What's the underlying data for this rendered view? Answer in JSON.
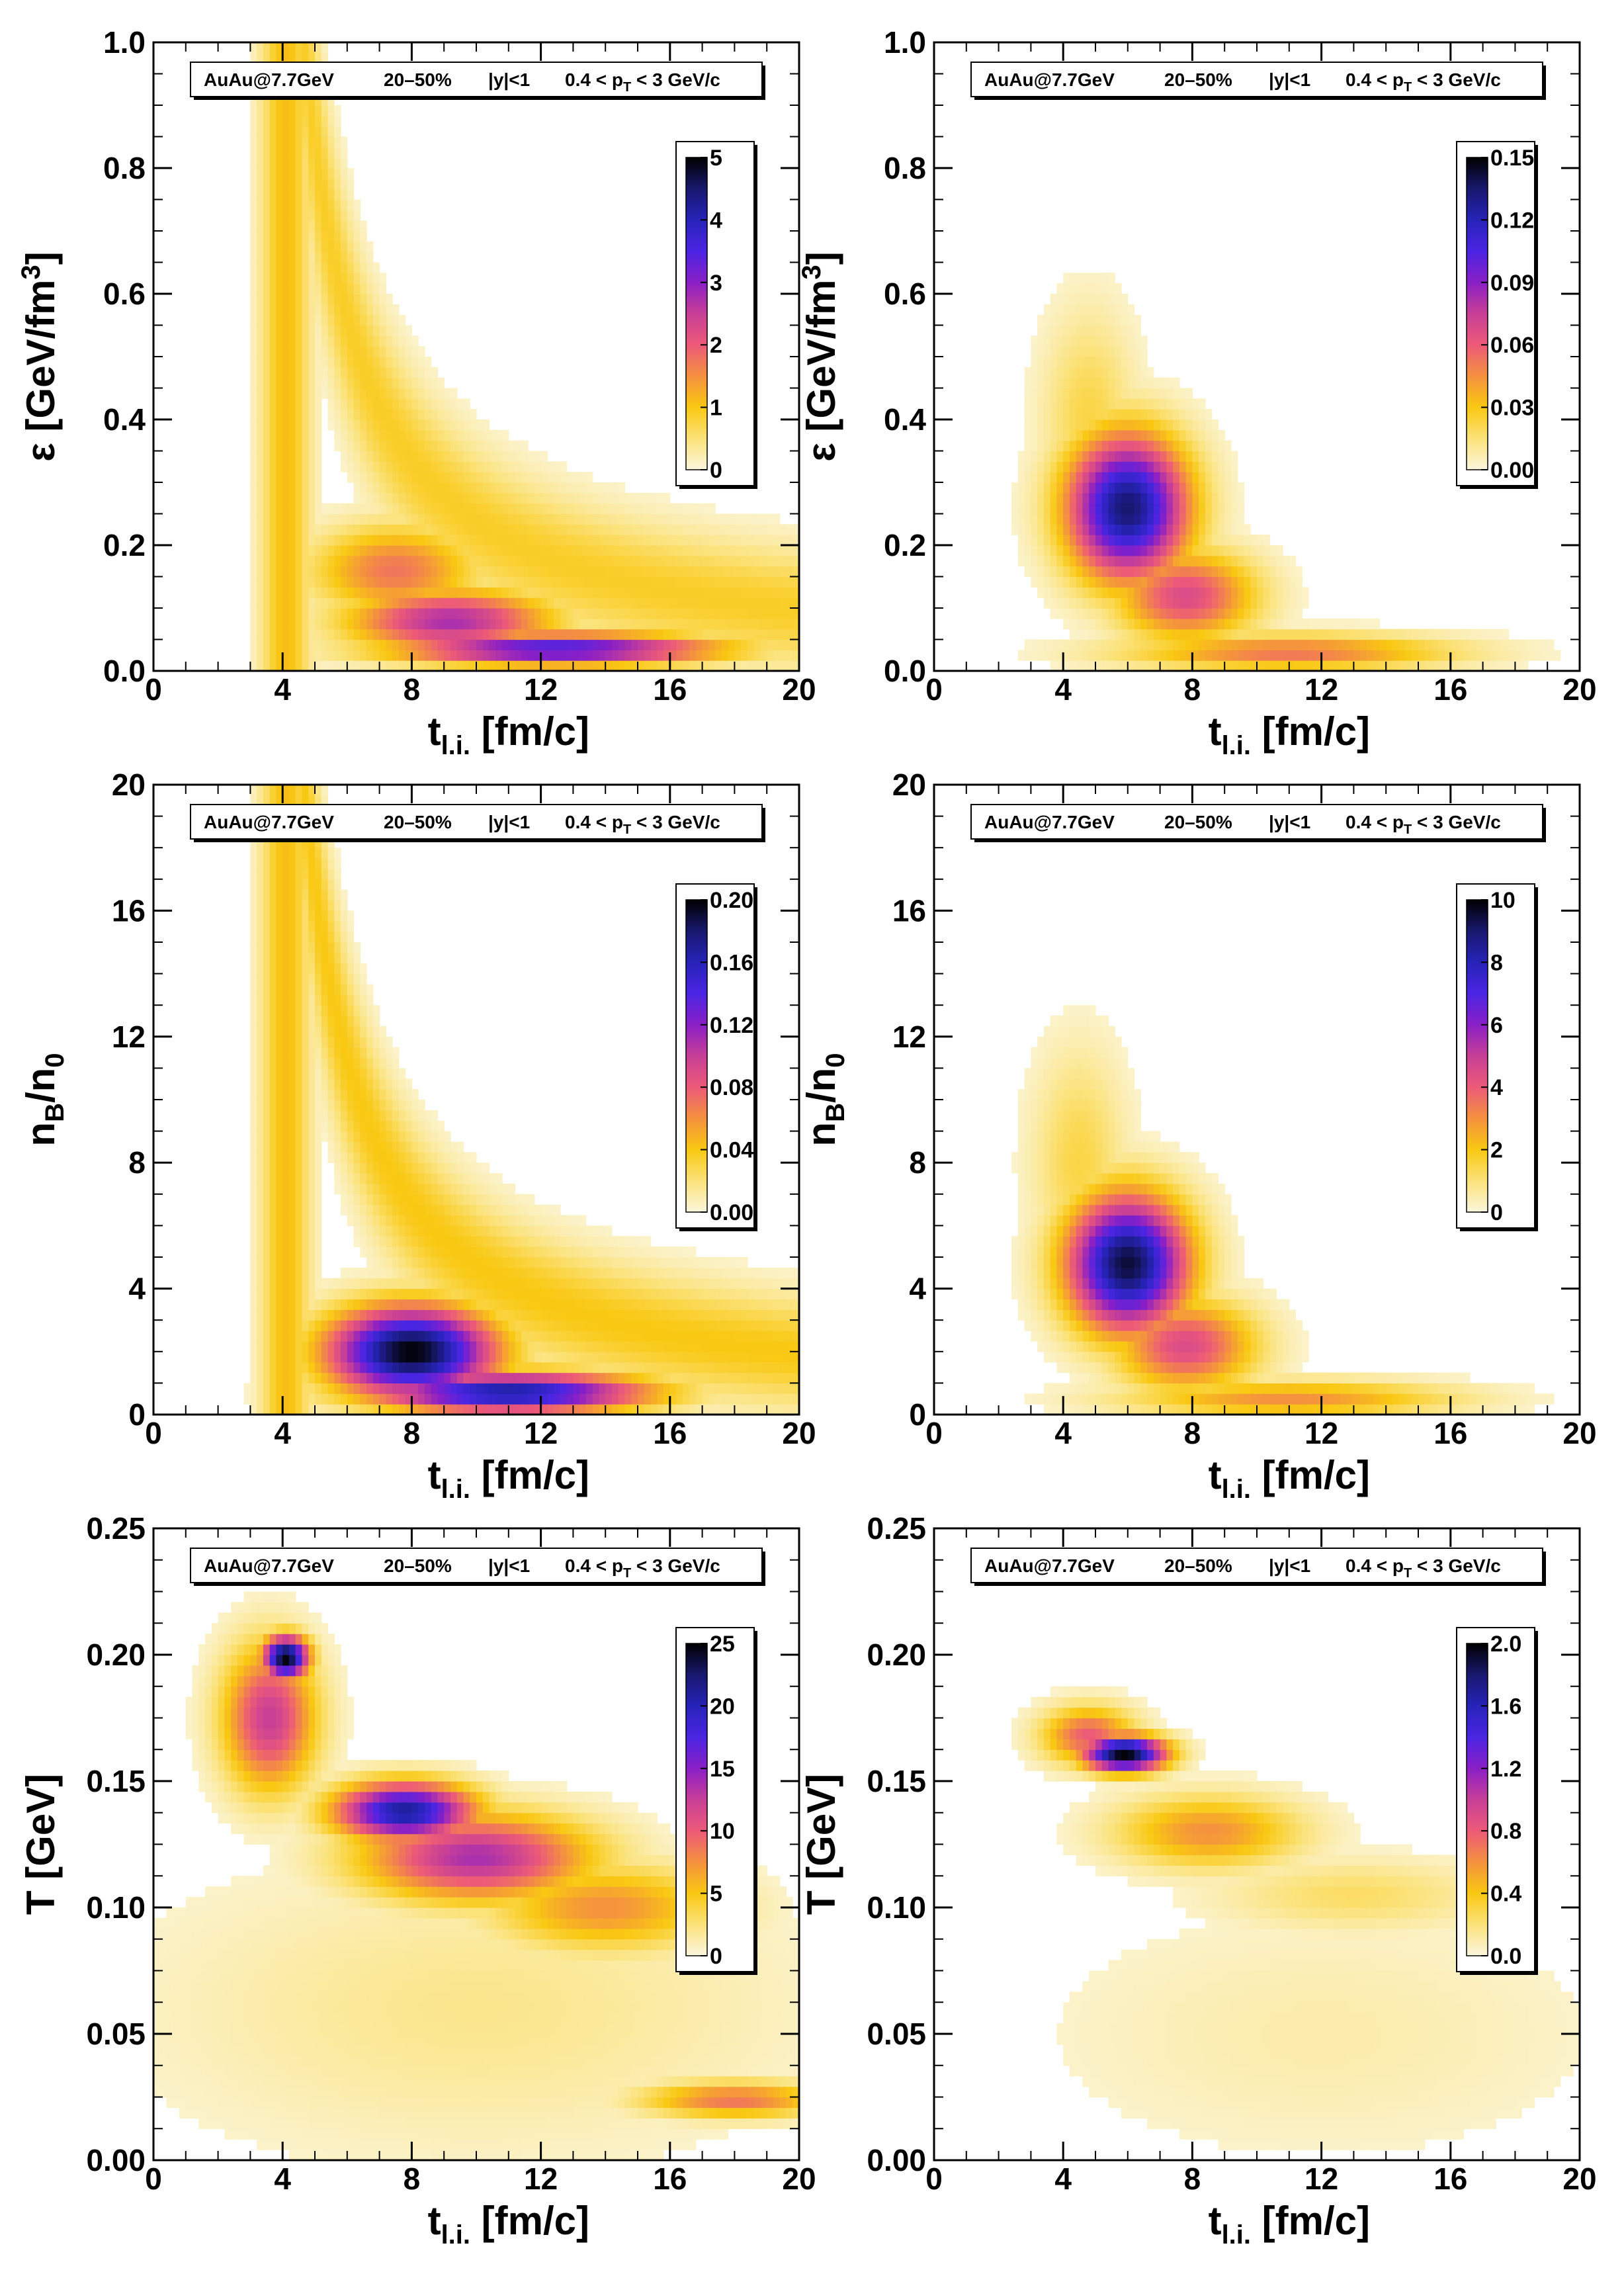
{
  "info_box": {
    "collision": "AuAu@7.7GeV",
    "centrality": "20–50%",
    "rapidity": "|y|<1",
    "pt_range": "0.4 < p",
    "pt_sub": "T",
    "pt_tail": " < 3 GeV/c"
  },
  "colorscale": [
    "#fbf6dd",
    "#fbe27a",
    "#f9c812",
    "#f4913f",
    "#ec5a78",
    "#c73f97",
    "#8a1fc6",
    "#4a25e2",
    "#2723b8",
    "#18186e",
    "#000000"
  ],
  "chart_data": [
    {
      "type": "heatmap",
      "panel": "epsilon-all",
      "xlabel": "t",
      "xlabel_sub": "l.i.",
      "xlabel_tail": " [fm/c]",
      "ylabel_text": "ε [GeV/fm",
      "ylabel_sup": "3",
      "ylabel_tail": "]",
      "xlim": [
        0,
        20
      ],
      "ylim": [
        0,
        1.0
      ],
      "xticks": [
        "0",
        "4",
        "8",
        "12",
        "16",
        "20"
      ],
      "yticks": [
        "0.0",
        "0.2",
        "0.4",
        "0.6",
        "0.8",
        "1.0"
      ],
      "colorbar_range": [
        0,
        5
      ],
      "colorbar_ticks": [
        "0",
        "1",
        "2",
        "3",
        "4",
        "5"
      ],
      "features": [
        {
          "kind": "band",
          "t": 4.1,
          "width": 1.6,
          "ylow": 0.0,
          "yhigh": 1.0,
          "level": 0.22
        },
        {
          "kind": "curve",
          "a": 2.2,
          "t0": 3.0,
          "p": 1.15,
          "c": 0.015,
          "width": 0.055,
          "level": 0.18
        },
        {
          "kind": "blob",
          "t": 7.5,
          "y": 0.16,
          "st": 1.8,
          "sy": 0.05,
          "level": 0.35
        },
        {
          "kind": "blob",
          "t": 9.2,
          "y": 0.08,
          "st": 2.2,
          "sy": 0.035,
          "level": 0.55
        },
        {
          "kind": "blob",
          "t": 12.5,
          "y": 0.035,
          "st": 3.5,
          "sy": 0.018,
          "level": 0.72
        }
      ]
    },
    {
      "type": "heatmap",
      "panel": "epsilon-selected",
      "xlabel": "t",
      "xlabel_sub": "l.i.",
      "xlabel_tail": " [fm/c]",
      "ylabel_text": "ε [GeV/fm",
      "ylabel_sup": "3",
      "ylabel_tail": "]",
      "xlim": [
        0,
        20
      ],
      "ylim": [
        0,
        1.0
      ],
      "xticks": [
        "0",
        "4",
        "8",
        "12",
        "16",
        "20"
      ],
      "yticks": [
        "0.0",
        "0.2",
        "0.4",
        "0.6",
        "0.8",
        "1.0"
      ],
      "colorbar_range": [
        0,
        0.15
      ],
      "colorbar_ticks": [
        "0.00",
        "0.03",
        "0.06",
        "0.09",
        "0.12",
        "0.15"
      ],
      "features": [
        {
          "kind": "blob",
          "t": 6.0,
          "y": 0.26,
          "st": 1.3,
          "sy": 0.08,
          "level": 0.9
        },
        {
          "kind": "blob",
          "t": 7.8,
          "y": 0.12,
          "st": 1.5,
          "sy": 0.05,
          "level": 0.45
        },
        {
          "kind": "blob",
          "t": 11.0,
          "y": 0.03,
          "st": 3.5,
          "sy": 0.02,
          "level": 0.35
        },
        {
          "kind": "blob",
          "t": 4.8,
          "y": 0.4,
          "st": 1.0,
          "sy": 0.12,
          "level": 0.15
        }
      ]
    },
    {
      "type": "heatmap",
      "panel": "nb-all",
      "xlabel": "t",
      "xlabel_sub": "l.i.",
      "xlabel_tail": " [fm/c]",
      "ylabel_text": "n",
      "ylabel_sub1": "B",
      "ylabel_mid": "/n",
      "ylabel_sub2": "0",
      "xlim": [
        0,
        20
      ],
      "ylim": [
        0,
        20
      ],
      "xticks": [
        "0",
        "4",
        "8",
        "12",
        "16",
        "20"
      ],
      "yticks": [
        "0",
        "4",
        "8",
        "12",
        "16",
        "20"
      ],
      "colorbar_range": [
        0,
        0.2
      ],
      "colorbar_ticks": [
        "0.00",
        "0.04",
        "0.08",
        "0.12",
        "0.16",
        "0.20"
      ],
      "features": [
        {
          "kind": "band",
          "t": 4.1,
          "width": 1.6,
          "ylow": 0.0,
          "yhigh": 20.0,
          "level": 0.22
        },
        {
          "kind": "curve",
          "a": 44.0,
          "t0": 3.0,
          "p": 1.15,
          "c": 0.3,
          "width": 1.0,
          "level": 0.2
        },
        {
          "kind": "blob",
          "t": 8.0,
          "y": 2.0,
          "st": 1.8,
          "sy": 1.0,
          "level": 1.0
        },
        {
          "kind": "blob",
          "t": 11.0,
          "y": 0.7,
          "st": 3.0,
          "sy": 0.45,
          "level": 0.85
        }
      ]
    },
    {
      "type": "heatmap",
      "panel": "nb-selected",
      "xlabel": "t",
      "xlabel_sub": "l.i.",
      "xlabel_tail": " [fm/c]",
      "ylabel_text": "n",
      "ylabel_sub1": "B",
      "ylabel_mid": "/n",
      "ylabel_sub2": "0",
      "xlim": [
        0,
        20
      ],
      "ylim": [
        0,
        20
      ],
      "xticks": [
        "0",
        "4",
        "8",
        "12",
        "16",
        "20"
      ],
      "yticks": [
        "0",
        "4",
        "8",
        "12",
        "16",
        "20"
      ],
      "colorbar_range": [
        0,
        10
      ],
      "colorbar_ticks": [
        "0",
        "2",
        "4",
        "6",
        "8",
        "10"
      ],
      "features": [
        {
          "kind": "blob",
          "t": 6.0,
          "y": 4.8,
          "st": 1.3,
          "sy": 1.5,
          "level": 0.95
        },
        {
          "kind": "blob",
          "t": 7.8,
          "y": 2.2,
          "st": 1.5,
          "sy": 1.0,
          "level": 0.45
        },
        {
          "kind": "blob",
          "t": 11.0,
          "y": 0.5,
          "st": 3.5,
          "sy": 0.4,
          "level": 0.3
        },
        {
          "kind": "blob",
          "t": 4.5,
          "y": 8.0,
          "st": 1.0,
          "sy": 2.5,
          "level": 0.15
        }
      ]
    },
    {
      "type": "heatmap",
      "panel": "temperature-all",
      "xlabel": "t",
      "xlabel_sub": "l.i.",
      "xlabel_tail": " [fm/c]",
      "ylabel_text": "T [GeV]",
      "xlim": [
        0,
        20
      ],
      "ylim": [
        0,
        0.25
      ],
      "xticks": [
        "0",
        "4",
        "8",
        "12",
        "16",
        "20"
      ],
      "yticks": [
        "0.00",
        "0.05",
        "0.10",
        "0.15",
        "0.20",
        "0.25"
      ],
      "colorbar_range": [
        0,
        25
      ],
      "colorbar_ticks": [
        "0",
        "5",
        "10",
        "15",
        "20",
        "25"
      ],
      "features": [
        {
          "kind": "blob",
          "t": 4.1,
          "y": 0.199,
          "st": 0.5,
          "sy": 0.006,
          "level": 1.0
        },
        {
          "kind": "blob",
          "t": 3.6,
          "y": 0.175,
          "st": 1.0,
          "sy": 0.02,
          "level": 0.5
        },
        {
          "kind": "blob",
          "t": 7.8,
          "y": 0.138,
          "st": 1.5,
          "sy": 0.008,
          "level": 0.85
        },
        {
          "kind": "blob",
          "t": 10.0,
          "y": 0.12,
          "st": 2.5,
          "sy": 0.012,
          "level": 0.55
        },
        {
          "kind": "blob",
          "t": 14.0,
          "y": 0.1,
          "st": 2.5,
          "sy": 0.012,
          "level": 0.3
        },
        {
          "kind": "blob",
          "t": 18.0,
          "y": 0.024,
          "st": 2.0,
          "sy": 0.005,
          "level": 0.35
        },
        {
          "kind": "blob",
          "t": 10.0,
          "y": 0.06,
          "st": 7.0,
          "sy": 0.04,
          "level": 0.08
        }
      ]
    },
    {
      "type": "heatmap",
      "panel": "temperature-selected",
      "xlabel": "t",
      "xlabel_sub": "l.i.",
      "xlabel_tail": " [fm/c]",
      "ylabel_text": "T [GeV]",
      "xlim": [
        0,
        20
      ],
      "ylim": [
        0,
        0.25
      ],
      "xticks": [
        "0",
        "4",
        "8",
        "12",
        "16",
        "20"
      ],
      "yticks": [
        "0.00",
        "0.05",
        "0.10",
        "0.15",
        "0.20",
        "0.25"
      ],
      "colorbar_range": [
        0,
        2.0
      ],
      "colorbar_ticks": [
        "0.0",
        "0.4",
        "0.8",
        "1.2",
        "1.6",
        "2.0"
      ],
      "features": [
        {
          "kind": "blob",
          "t": 5.9,
          "y": 0.161,
          "st": 0.9,
          "sy": 0.005,
          "level": 1.0
        },
        {
          "kind": "blob",
          "t": 4.8,
          "y": 0.168,
          "st": 1.0,
          "sy": 0.008,
          "level": 0.4
        },
        {
          "kind": "blob",
          "t": 8.5,
          "y": 0.13,
          "st": 2.0,
          "sy": 0.01,
          "level": 0.3
        },
        {
          "kind": "blob",
          "t": 13.0,
          "y": 0.105,
          "st": 3.0,
          "sy": 0.01,
          "level": 0.12
        },
        {
          "kind": "blob",
          "t": 12.0,
          "y": 0.05,
          "st": 6.0,
          "sy": 0.035,
          "level": 0.05
        }
      ]
    }
  ]
}
